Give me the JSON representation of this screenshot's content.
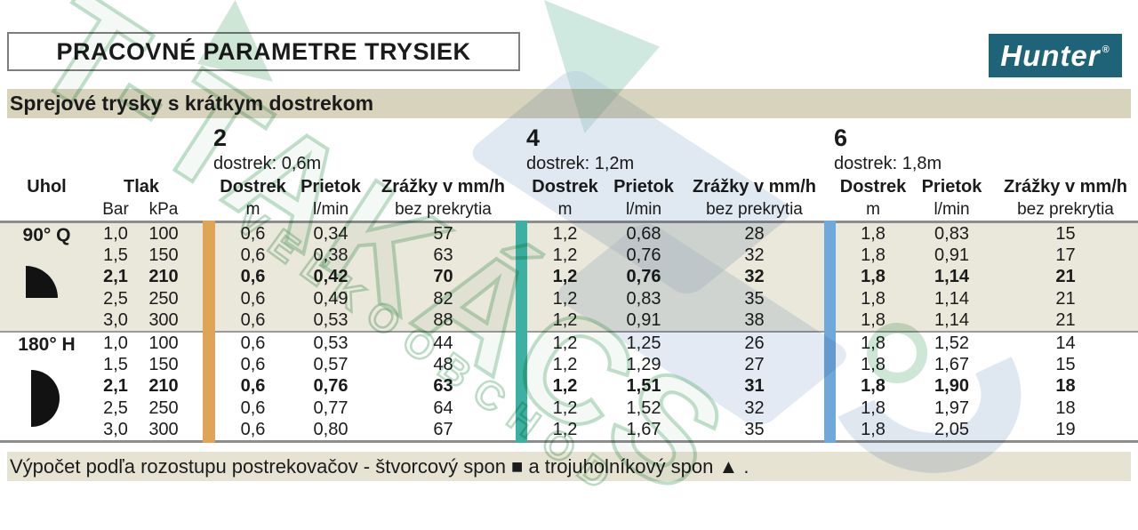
{
  "header": {
    "title": "PRACOVNÉ PARAMETRE TRYSIEK",
    "logo": {
      "brand": "Hunter",
      "registered": "®"
    },
    "subtitle": "Sprejové trysky s krátkym dostrekom"
  },
  "table": {
    "corner_labels": {
      "uhol": "Uhol",
      "tlak": "Tlak",
      "bar": "Bar",
      "kpa": "kPa"
    },
    "column_labels": {
      "dostrek": "Dostrek",
      "prietok": "Prietok",
      "zrazky": "Zrážky v mm/h",
      "m": "m",
      "lmin": "l/min",
      "bez_prekrytia": "bez prekrytia"
    },
    "groups": [
      {
        "number": "2",
        "dostrek": "dostrek: 0,6m"
      },
      {
        "number": "4",
        "dostrek": "dostrek: 1,2m"
      },
      {
        "number": "6",
        "dostrek": "dostrek: 1,8m"
      }
    ],
    "blocks": [
      {
        "angle": "90° Q",
        "icon": "quarter-circle-icon",
        "rows": [
          {
            "bold": false,
            "values": [
              "1,0",
              "100",
              "0,6",
              "0,34",
              "57",
              "1,2",
              "0,68",
              "28",
              "1,8",
              "0,83",
              "15"
            ]
          },
          {
            "bold": false,
            "values": [
              "1,5",
              "150",
              "0,6",
              "0,38",
              "63",
              "1,2",
              "0,76",
              "32",
              "1,8",
              "0,91",
              "17"
            ]
          },
          {
            "bold": true,
            "values": [
              "2,1",
              "210",
              "0,6",
              "0,42",
              "70",
              "1,2",
              "0,76",
              "32",
              "1,8",
              "1,14",
              "21"
            ]
          },
          {
            "bold": false,
            "values": [
              "2,5",
              "250",
              "0,6",
              "0,49",
              "82",
              "1,2",
              "0,83",
              "35",
              "1,8",
              "1,14",
              "21"
            ]
          },
          {
            "bold": false,
            "values": [
              "3,0",
              "300",
              "0,6",
              "0,53",
              "88",
              "1,2",
              "0,91",
              "38",
              "1,8",
              "1,14",
              "21"
            ]
          }
        ]
      },
      {
        "angle": "180° H",
        "icon": "half-circle-icon",
        "rows": [
          {
            "bold": false,
            "values": [
              "1,0",
              "100",
              "0,6",
              "0,53",
              "44",
              "1,2",
              "1,25",
              "26",
              "1,8",
              "1,52",
              "14"
            ]
          },
          {
            "bold": false,
            "values": [
              "1,5",
              "150",
              "0,6",
              "0,57",
              "48",
              "1,2",
              "1,29",
              "27",
              "1,8",
              "1,67",
              "15"
            ]
          },
          {
            "bold": true,
            "values": [
              "2,1",
              "210",
              "0,6",
              "0,76",
              "63",
              "1,2",
              "1,51",
              "31",
              "1,8",
              "1,90",
              "18"
            ]
          },
          {
            "bold": false,
            "values": [
              "2,5",
              "250",
              "0,6",
              "0,77",
              "64",
              "1,2",
              "1,52",
              "32",
              "1,8",
              "1,97",
              "18"
            ]
          },
          {
            "bold": false,
            "values": [
              "3,0",
              "300",
              "0,6",
              "0,80",
              "67",
              "1,2",
              "1,67",
              "35",
              "1,8",
              "2,05",
              "19"
            ]
          }
        ]
      }
    ]
  },
  "footer": {
    "note": "Výpočet podľa rozostupu postrekovačov - štvorcový spon ■ a trojuholníkový spon ▲ ."
  },
  "watermark": {
    "big_text": "T-TAKÁCS",
    "small_text": "VEĽKOOBCHOD"
  },
  "colors": {
    "hunter_teal": "#1f6378",
    "subtitle_bar": "#d8d3bd",
    "block_beige": "#eae7db",
    "footer_bar": "#e7e3d3",
    "divider_orange": "#dfa557",
    "divider_teal": "#3cb0a3",
    "divider_blue": "#6fa9dc",
    "watermark_green": "#76b78a",
    "watermark_blue": "#b2c6dd"
  }
}
